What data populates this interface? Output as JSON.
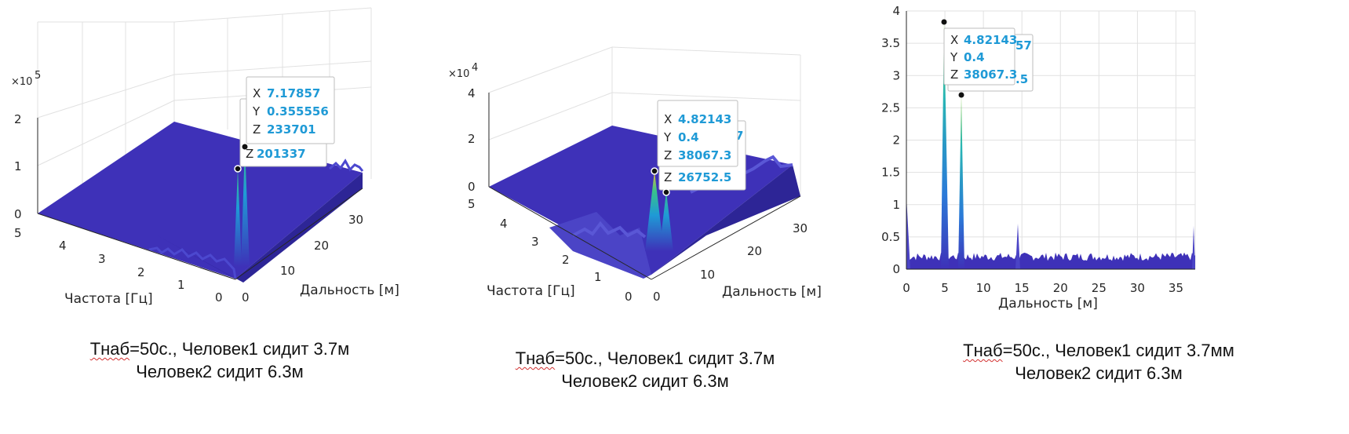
{
  "colors": {
    "surface": "#3e31b8",
    "surface_dark": "#2d2596",
    "peak_mid": "#1f9ad6",
    "peak_hi": "#f3b936",
    "grid": "#e1e1e1",
    "axis": "#262626",
    "tip_value": "#1f9ad6"
  },
  "chart_data": [
    {
      "type": "surface",
      "xlabel": "Дальность [м]",
      "ylabel": "Частота [Гц]",
      "exponent_label": "×10",
      "exponent_power": "5",
      "x_ticks": [
        "0",
        "10",
        "20",
        "30"
      ],
      "y_ticks": [
        "5",
        "4",
        "3",
        "2",
        "1",
        "0"
      ],
      "z_ticks": [
        "2",
        "1",
        "0"
      ],
      "datatips": [
        {
          "x": "7.17857",
          "y": "0.355556",
          "z": "233701"
        },
        {
          "z": "201337"
        }
      ],
      "tip_keys": [
        "X",
        "Y",
        "Z"
      ]
    },
    {
      "type": "surface",
      "xlabel": "Дальность [м]",
      "ylabel": "Частота [Гц]",
      "exponent_label": "×10",
      "exponent_power": "4",
      "x_ticks": [
        "0",
        "10",
        "20",
        "30"
      ],
      "y_ticks": [
        "5",
        "4",
        "3",
        "2",
        "1",
        "0"
      ],
      "z_ticks": [
        "4",
        "2",
        "0"
      ],
      "datatips": [
        {
          "x": "4.82143",
          "y": "0.4",
          "z": "38067.3"
        },
        {
          "z": "26752.5",
          "z_partial": "7"
        }
      ],
      "tip_keys": [
        "X",
        "Y",
        "Z"
      ]
    },
    {
      "type": "area",
      "xlabel": "Дальность [м]",
      "x_ticks": [
        "0",
        "5",
        "10",
        "15",
        "20",
        "25",
        "30",
        "35"
      ],
      "y_ticks": [
        "0",
        "0.5",
        "1",
        "1.5",
        "2",
        "2.5",
        "3",
        "3.5",
        "4"
      ],
      "xlim": [
        0,
        37.5
      ],
      "ylim": [
        0,
        4
      ],
      "grid": true,
      "peaks": [
        {
          "x": 4.82,
          "y": 3.8
        },
        {
          "x": 7.18,
          "y": 2.68
        }
      ],
      "datatips": [
        {
          "x": "4.82143",
          "y": "0.4",
          "z": "38067.3"
        },
        {
          "partial_top": "57",
          "partial_bottom": ".5"
        }
      ],
      "tip_keys": [
        "X",
        "Y",
        "Z"
      ]
    }
  ],
  "captions": [
    {
      "line1_a": "Тнаб",
      "line1_b": "=50с., Человек1 сидит 3.7м",
      "line2": "Человек2 сидит 6.3м"
    },
    {
      "line1_a": "Тнаб",
      "line1_b": "=50с., Человек1 сидит 3.7м",
      "line2": "Человек2 сидит 6.3м"
    },
    {
      "line1_a": "Тнаб",
      "line1_b": "=50с., Человек1 сидит 3.7мм",
      "line2": "Человек2 сидит 6.3м"
    }
  ]
}
